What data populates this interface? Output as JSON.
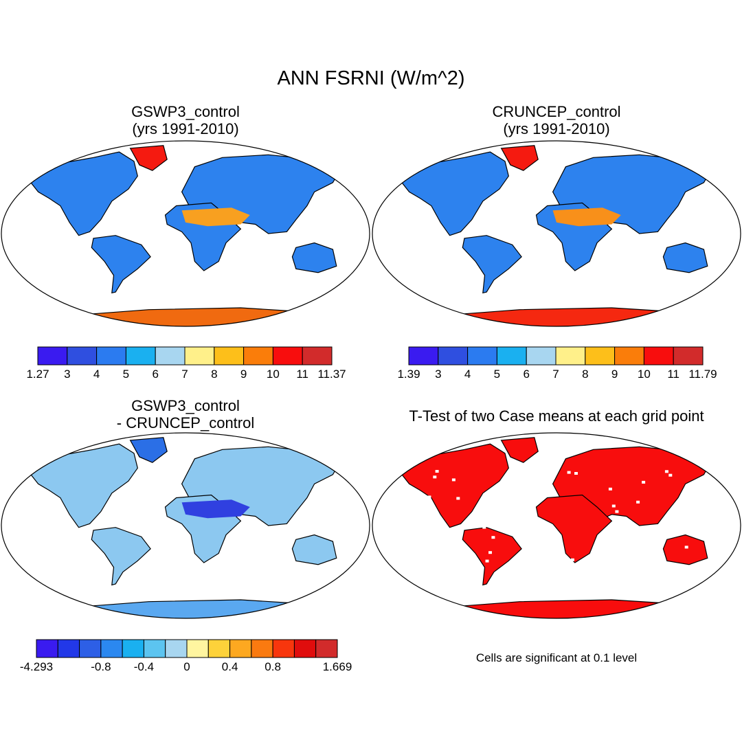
{
  "title": "ANN FSRNI (W/m^2)",
  "panels": [
    {
      "title_lines": [
        "GSWP3_control",
        "(yrs 1991-2010)"
      ],
      "type": "field",
      "palette": [
        "#3a1bf0",
        "#2f4fe0",
        "#2b7bf0",
        "#1ab0f0",
        "#a8d6f0",
        "#fff08a",
        "#fdbf1a",
        "#fa7d0a",
        "#f80d0d",
        "#d22b2b"
      ],
      "ticks": [
        "1.27",
        "3",
        "4",
        "5",
        "6",
        "7",
        "8",
        "9",
        "10",
        "11",
        "11.37"
      ],
      "land_color": "#2d82ee",
      "desert_color": "#f8a020",
      "antarctica_color": "#f06a10",
      "greenland_color": "#f51a10"
    },
    {
      "title_lines": [
        "CRUNCEP_control",
        "(yrs 1991-2010)"
      ],
      "type": "field",
      "palette": [
        "#3a1bf0",
        "#2f4fe0",
        "#2b7bf0",
        "#1ab0f0",
        "#a8d6f0",
        "#fff08a",
        "#fdbf1a",
        "#fa7d0a",
        "#f80d0d",
        "#d22b2b"
      ],
      "ticks": [
        "1.39",
        "3",
        "4",
        "5",
        "6",
        "7",
        "8",
        "9",
        "10",
        "11",
        "11.79"
      ],
      "land_color": "#2d82ee",
      "desert_color": "#f8901a",
      "antarctica_color": "#f52810",
      "greenland_color": "#f51a10"
    },
    {
      "title_lines": [
        "GSWP3_control",
        "- CRUNCEP_control"
      ],
      "type": "diff",
      "palette": [
        "#3a1bf0",
        "#2238e8",
        "#2d5fe6",
        "#2b88f0",
        "#1ab0f0",
        "#5cc4f0",
        "#a8d6f0",
        "#fff5a0",
        "#fdd23a",
        "#fda820",
        "#fa7a10",
        "#f8360d",
        "#e00d0d",
        "#d22b2b"
      ],
      "ticks": [
        "-4.293",
        "-0.8",
        "-0.4",
        "0",
        "0.4",
        "0.8",
        "1.669"
      ],
      "land_color": "#8cc8f0",
      "desert_color": "#3040e0",
      "antarctica_color": "#5aa8f0",
      "greenland_color": "#2b6fe6"
    },
    {
      "title_lines": [
        "T-Test of two Case means at each grid point"
      ],
      "type": "ttest",
      "land_color": "#f80d0d",
      "note": "Cells are significant at 0.1 level"
    }
  ]
}
